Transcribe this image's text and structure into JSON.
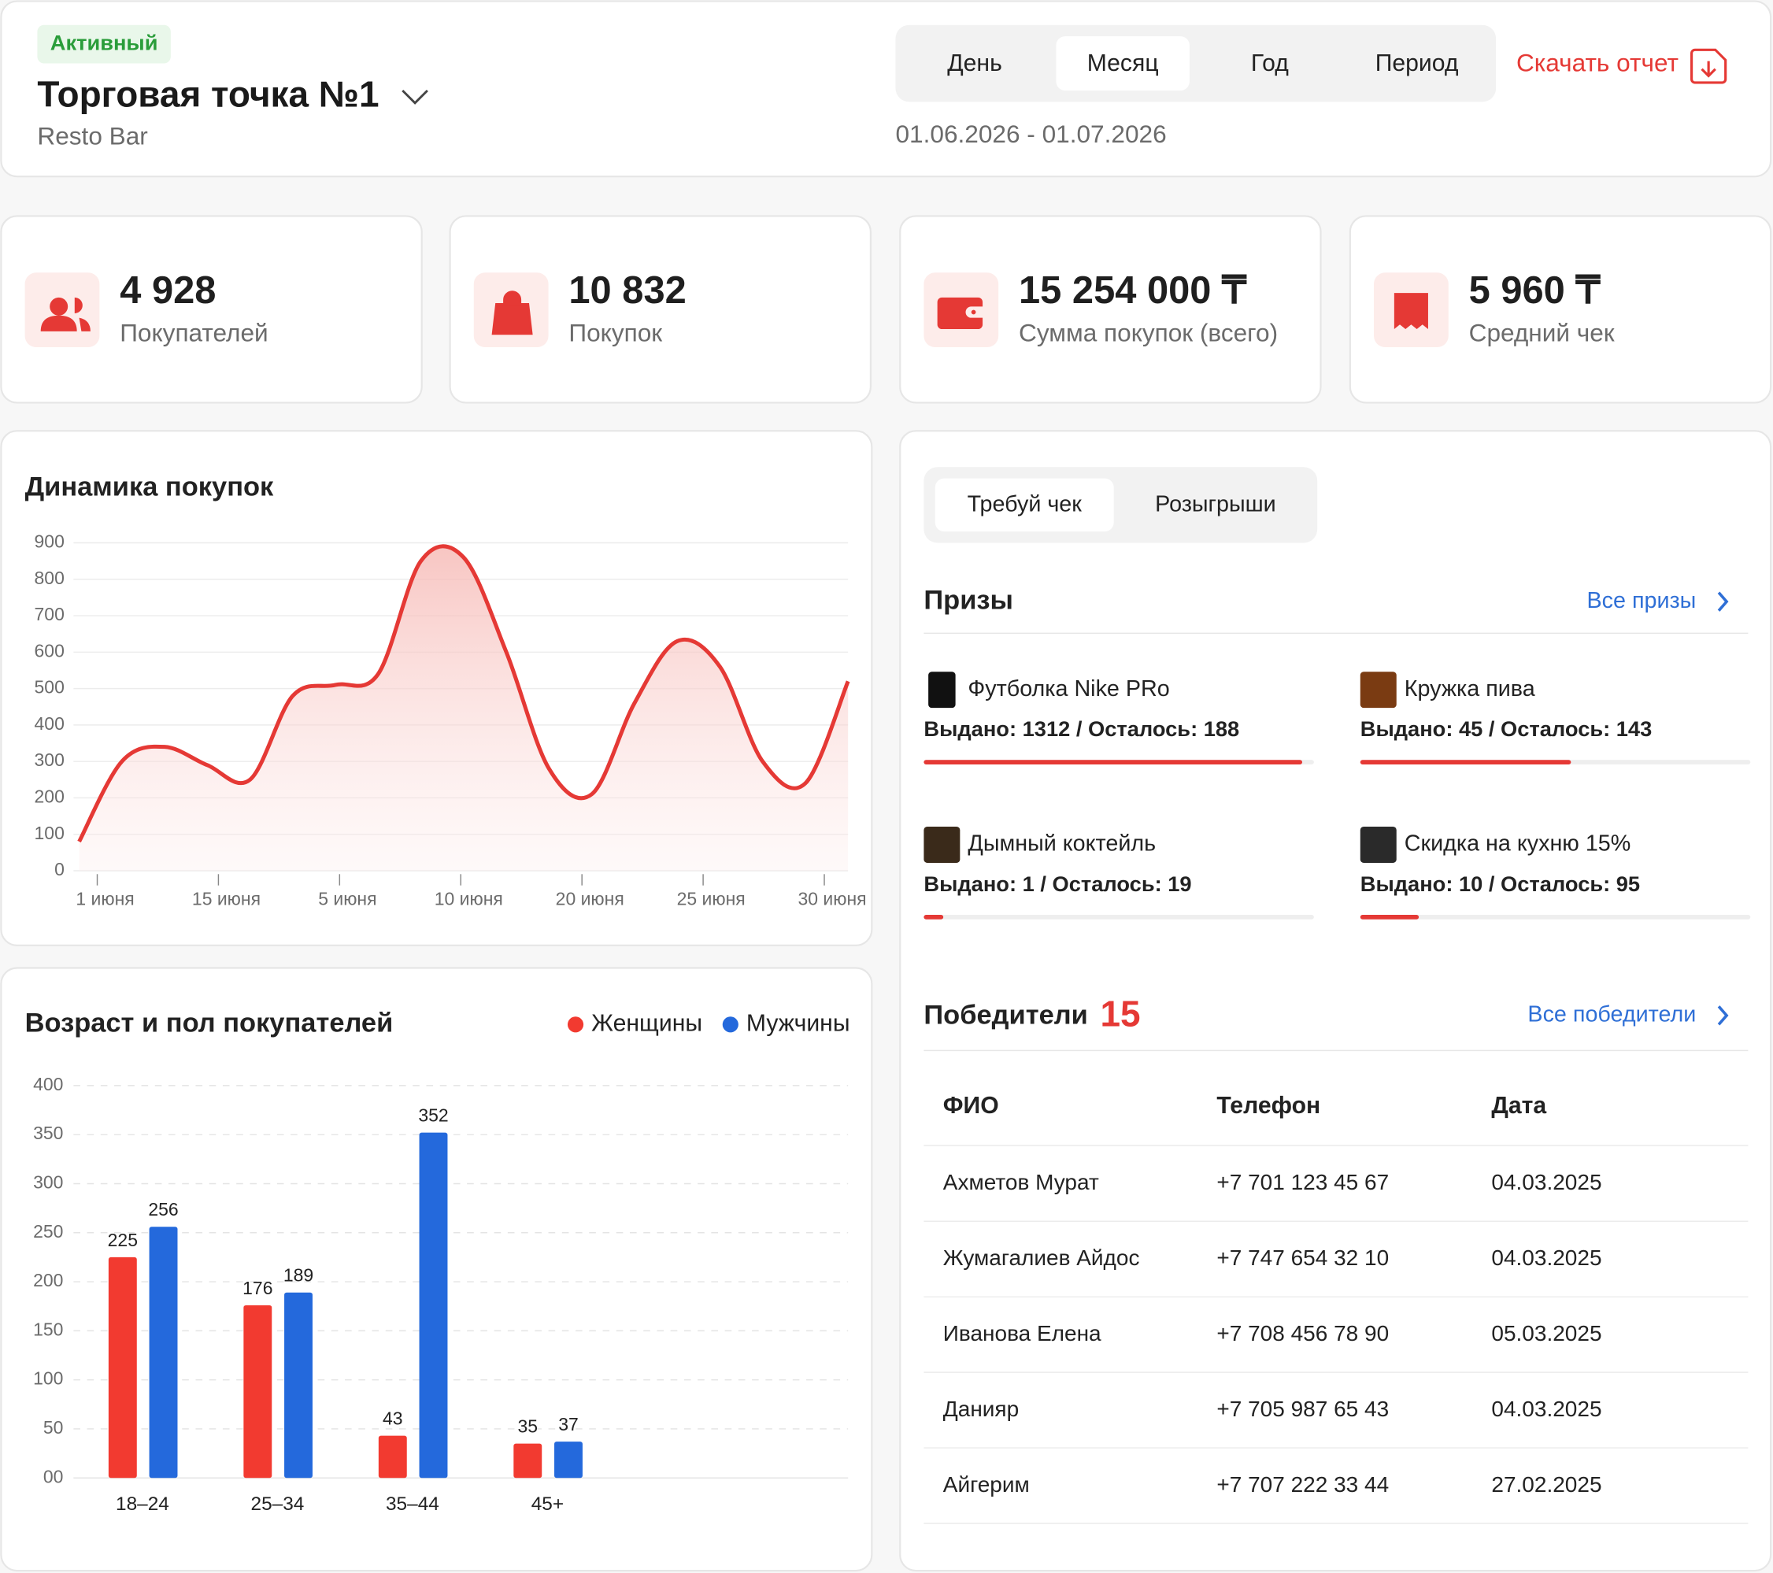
{
  "header": {
    "status": "Активный",
    "title": "Торговая точка №1",
    "subtitle": "Resto Bar",
    "periods": [
      "День",
      "Месяц",
      "Год",
      "Период"
    ],
    "active_period": 1,
    "download": "Скачать отчет",
    "date_range": "01.06.2026 - 01.07.2026"
  },
  "stats": [
    {
      "value": "4 928",
      "label": "Покупателей"
    },
    {
      "value": "10 832",
      "label": "Покупок"
    },
    {
      "value": "15 254 000 ₸",
      "label": "Сумма покупок (всего)"
    },
    {
      "value": "5 960 ₸",
      "label": "Средний чек"
    }
  ],
  "line_chart": {
    "type": "line",
    "title": "Динамика покупок",
    "color": "#e53935",
    "x_labels": [
      "1 июня",
      "15 июня",
      "5 июня",
      "10 июня",
      "20 июня",
      "25 июня",
      "30 июня"
    ],
    "values": [
      80,
      300,
      340,
      290,
      250,
      480,
      510,
      540,
      850,
      860,
      600,
      280,
      210,
      460,
      630,
      560,
      300,
      240,
      520
    ],
    "ylim": [
      0,
      900
    ],
    "yticks": [
      0,
      100,
      200,
      300,
      400,
      500,
      600,
      700,
      800,
      900
    ],
    "grid": true
  },
  "bar_chart": {
    "type": "bar",
    "title": "Возраст и пол покупателей",
    "categories": [
      "18–24",
      "25–34",
      "35–44",
      "45+"
    ],
    "series": [
      {
        "name": "Женщины",
        "color": "#f23a30",
        "values": [
          225,
          176,
          43,
          35
        ]
      },
      {
        "name": "Мужчины",
        "color": "#2469dc",
        "values": [
          256,
          189,
          352,
          37
        ]
      }
    ],
    "ylim": [
      0,
      400
    ],
    "yticks": [
      {
        "value": 0,
        "label": "00"
      },
      50,
      100,
      150,
      200,
      250,
      300,
      350,
      400
    ],
    "grid": true
  },
  "tabs": {
    "items": [
      "Требуй чек",
      "Розыгрыши"
    ],
    "active": 0
  },
  "prizes": {
    "title": "Призы",
    "link": "Все призы",
    "items": [
      {
        "name": "Футболка Nike PRo",
        "stats": "Выдано: 1312 / Осталось: 188",
        "progress": 97
      },
      {
        "name": "Кружка пива",
        "stats": "Выдано: 45 / Осталось: 143",
        "progress": 54
      },
      {
        "name": "Дымный коктейль",
        "stats": "Выдано: 1 / Осталось: 19",
        "progress": 5
      },
      {
        "name": "Скидка на кухню 15%",
        "stats": "Выдано: 10 / Осталось: 95",
        "progress": 15
      }
    ]
  },
  "winners": {
    "title": "Победители",
    "count": "15",
    "link": "Все победители",
    "columns": [
      "ФИО",
      "Телефон",
      "Дата"
    ],
    "rows": [
      [
        "Ахметов Мурат",
        "+7 701 123 45 67",
        "04.03.2025"
      ],
      [
        "Жумагалиев Айдос",
        "+7 747 654 32 10",
        "04.03.2025"
      ],
      [
        "Иванова Елена",
        "+7 708 456 78 90",
        "05.03.2025"
      ],
      [
        "Данияр",
        "+7 705 987 65 43",
        "04.03.2025"
      ],
      [
        "Айгерим",
        "+7 707 222 33 44",
        "27.02.2025"
      ]
    ]
  }
}
